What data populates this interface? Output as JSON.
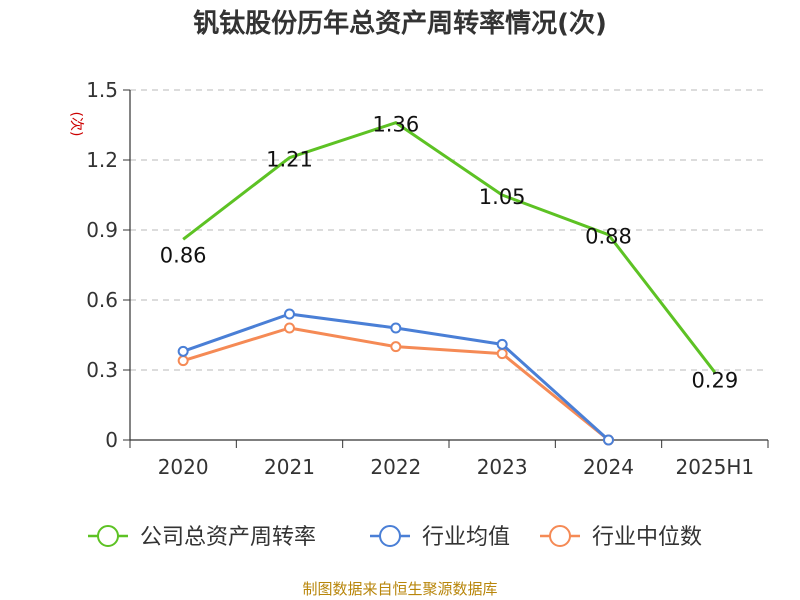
{
  "chart_data": {
    "type": "line",
    "title": "钒钛股份历年总资产周转率情况(次)",
    "ylabel": "(次)",
    "xlabel": "",
    "categories": [
      "2020",
      "2021",
      "2022",
      "2023",
      "2024",
      "2025H1"
    ],
    "ylim": [
      0,
      1.5
    ],
    "yticks": [
      0,
      0.3,
      0.6,
      0.9,
      1.2,
      1.5
    ],
    "ytick_labels": [
      "0",
      "0.3",
      "0.6",
      "0.9",
      "1.2",
      "1.5"
    ],
    "grid": true,
    "legend_position": "bottom",
    "series": [
      {
        "name": "公司总资产周转率",
        "color": "#5dc224",
        "values": [
          0.86,
          1.21,
          1.36,
          1.05,
          0.88,
          0.29
        ],
        "labels": [
          "0.86",
          "1.21",
          "1.36",
          "1.05",
          "0.88",
          "0.29"
        ],
        "markers": false
      },
      {
        "name": "行业均值",
        "color": "#4a7fd6",
        "values": [
          0.38,
          0.54,
          0.48,
          0.41,
          0.0,
          null
        ],
        "markers": true
      },
      {
        "name": "行业中位数",
        "color": "#f58a55",
        "values": [
          0.34,
          0.48,
          0.4,
          0.37,
          0.0,
          null
        ],
        "markers": true
      }
    ],
    "source": "制图数据来自恒生聚源数据库"
  }
}
